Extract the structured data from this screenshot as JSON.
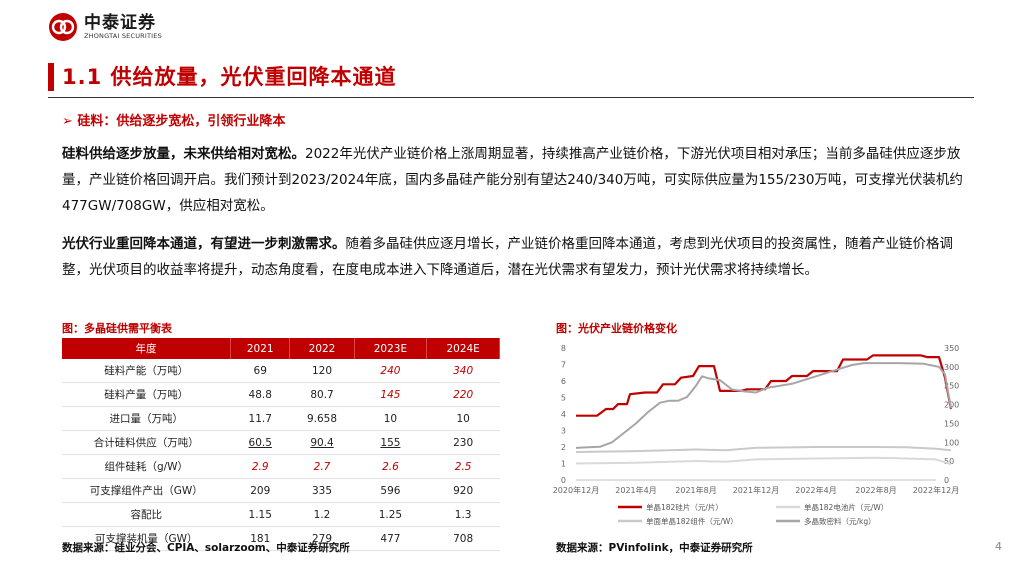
{
  "header": {
    "logo_cn": "中泰证券",
    "logo_en": "ZHONGTAI SECURITIES"
  },
  "title": "1.1 供给放量，光伏重回降本通道",
  "subtitle": "➢ 硅料：供给逐步宽松，引领行业降本",
  "paragraphs": [
    {
      "lead": "硅料供给逐步放量，未来供给相对宽松。",
      "text": "2022年光伏产业链价格上涨周期显著，持续推高产业链价格，下游光伏项目相对承压；当前多晶硅供应逐步放量，产业链价格回调开启。我们预计到2023/2024年底，国内多晶硅产能分别有望达240/340万吨，可实际供应量为155/230万吨，可支撑光伏装机约477GW/708GW，供应相对宽松。"
    },
    {
      "lead": "光伏行业重回降本通道，有望进一步刺激需求。",
      "text": "随着多晶硅供应逐月增长，产业链价格重回降本通道，考虑到光伏项目的投资属性，随着产业链价格调整，光伏项目的收益率将提升，动态角度看，在度电成本进入下降通道后，潜在光伏需求有望发力，预计光伏需求将持续增长。"
    }
  ],
  "table": {
    "caption": "图：多晶硅供需平衡表",
    "headers": [
      "年度",
      "2021",
      "2022",
      "2023E",
      "2024E"
    ],
    "rows": [
      [
        "硅料产能（万吨）",
        "69",
        "120",
        "240",
        "340"
      ],
      [
        "硅料产量（万吨）",
        "48.8",
        "80.7",
        "145",
        "220"
      ],
      [
        "进口量（万吨）",
        "11.7",
        "9.658",
        "10",
        "10"
      ],
      [
        "合计硅料供应（万吨）",
        "60.5",
        "90.4",
        "155",
        "230"
      ],
      [
        "组件硅耗（g/W）",
        "2.9",
        "2.7",
        "2.6",
        "2.5"
      ],
      [
        "可支撑组件产出（GW）",
        "209",
        "335",
        "596",
        "920"
      ],
      [
        "容配比",
        "1.15",
        "1.2",
        "1.25",
        "1.3"
      ],
      [
        "可支撑装机量（GW）",
        "181",
        "279",
        "477",
        "708"
      ]
    ],
    "source": "数据来源：硅业分会、CPIA、solarzoom、中泰证券研究所"
  },
  "chart": {
    "caption": "图：光伏产业链价格变化",
    "source": "数据来源：PVinfolink，中泰证券研究所"
  },
  "chart_data": {
    "type": "line",
    "x": [
      "2020年12月",
      "2021年4月",
      "2021年8月",
      "2021年12月",
      "2022年4月",
      "2022年8月",
      "2022年12月"
    ],
    "y_left_ticks": [
      0,
      1,
      2,
      3,
      4,
      5,
      6,
      7,
      8
    ],
    "y_right_ticks": [
      0,
      50,
      100,
      150,
      200,
      250,
      300,
      350
    ],
    "ylim_left": [
      0,
      8
    ],
    "ylim_right": [
      0,
      350
    ],
    "legend_position": "bottom",
    "series": [
      {
        "name": "单晶182硅片（元/片）",
        "axis": "left",
        "color": "#c00000",
        "points": [
          [
            0,
            3.9
          ],
          [
            0.35,
            3.9
          ],
          [
            0.5,
            4.3
          ],
          [
            0.62,
            4.3
          ],
          [
            0.7,
            4.6
          ],
          [
            0.85,
            4.6
          ],
          [
            0.9,
            5.2
          ],
          [
            1.15,
            5.3
          ],
          [
            1.35,
            5.3
          ],
          [
            1.45,
            5.8
          ],
          [
            1.65,
            5.8
          ],
          [
            1.75,
            6.2
          ],
          [
            1.95,
            6.3
          ],
          [
            2.05,
            6.9
          ],
          [
            2.3,
            6.9
          ],
          [
            2.4,
            5.4
          ],
          [
            2.75,
            5.4
          ],
          [
            2.85,
            5.5
          ],
          [
            3.15,
            5.5
          ],
          [
            3.25,
            6.0
          ],
          [
            3.5,
            6.0
          ],
          [
            3.6,
            6.3
          ],
          [
            3.85,
            6.3
          ],
          [
            3.95,
            6.6
          ],
          [
            4.35,
            6.6
          ],
          [
            4.45,
            7.3
          ],
          [
            4.85,
            7.3
          ],
          [
            4.95,
            7.55
          ],
          [
            5.75,
            7.55
          ],
          [
            5.85,
            7.45
          ],
          [
            6.05,
            7.45
          ],
          [
            6.15,
            6.2
          ],
          [
            6.25,
            4.3
          ]
        ]
      },
      {
        "name": "单晶182电池片（元/W）",
        "axis": "left",
        "color": "#d9d9d9",
        "points": [
          [
            0,
            1.0
          ],
          [
            1.0,
            1.05
          ],
          [
            2.0,
            1.15
          ],
          [
            2.5,
            1.1
          ],
          [
            3.0,
            1.25
          ],
          [
            4.0,
            1.3
          ],
          [
            5.0,
            1.35
          ],
          [
            5.5,
            1.3
          ],
          [
            6.0,
            1.25
          ],
          [
            6.25,
            0.95
          ]
        ]
      },
      {
        "name": "单面单晶182组件（元/W）",
        "axis": "left",
        "color": "#c9c9c9",
        "points": [
          [
            0,
            1.7
          ],
          [
            1.0,
            1.75
          ],
          [
            2.0,
            1.85
          ],
          [
            2.5,
            1.8
          ],
          [
            3.0,
            1.95
          ],
          [
            4.0,
            2.0
          ],
          [
            5.0,
            2.0
          ],
          [
            5.5,
            1.98
          ],
          [
            6.0,
            1.9
          ],
          [
            6.25,
            1.8
          ]
        ]
      },
      {
        "name": "多晶致密料（元/kg）",
        "axis": "right",
        "color": "#a6a6a6",
        "points": [
          [
            0,
            85
          ],
          [
            0.2,
            87
          ],
          [
            0.4,
            88
          ],
          [
            0.6,
            100
          ],
          [
            0.8,
            125
          ],
          [
            1.0,
            150
          ],
          [
            1.2,
            180
          ],
          [
            1.4,
            205
          ],
          [
            1.55,
            210
          ],
          [
            1.7,
            210
          ],
          [
            1.85,
            220
          ],
          [
            2.0,
            250
          ],
          [
            2.1,
            275
          ],
          [
            2.2,
            270
          ],
          [
            2.4,
            265
          ],
          [
            2.6,
            240
          ],
          [
            2.8,
            235
          ],
          [
            3.0,
            232
          ],
          [
            3.2,
            245
          ],
          [
            3.4,
            250
          ],
          [
            3.6,
            255
          ],
          [
            3.8,
            265
          ],
          [
            4.0,
            275
          ],
          [
            4.2,
            285
          ],
          [
            4.4,
            295
          ],
          [
            4.6,
            305
          ],
          [
            4.8,
            310
          ],
          [
            5.0,
            310
          ],
          [
            5.4,
            310
          ],
          [
            5.8,
            308
          ],
          [
            6.05,
            300
          ],
          [
            6.15,
            280
          ],
          [
            6.25,
            190
          ]
        ]
      }
    ]
  },
  "page_number": "4"
}
